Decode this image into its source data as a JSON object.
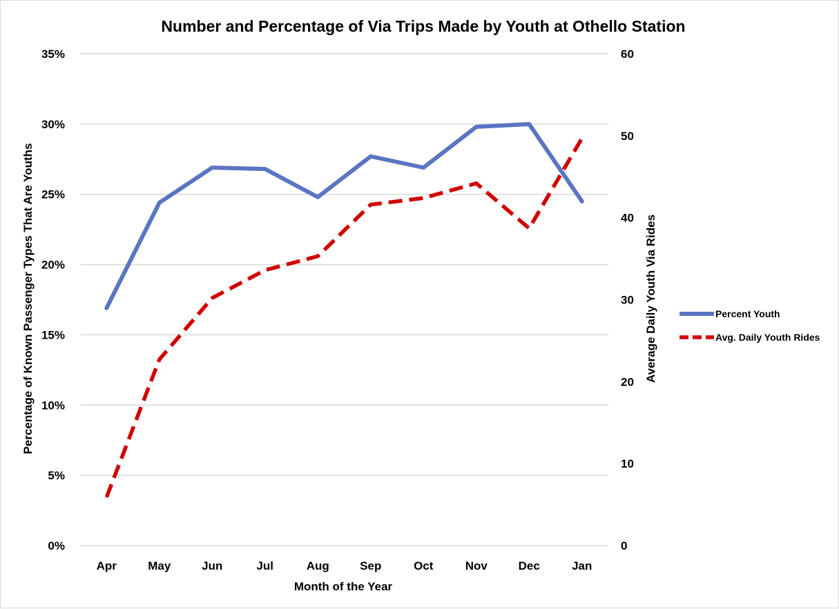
{
  "chart_data": {
    "type": "line",
    "title": "Number and Percentage of Via Trips Made by Youth at Othello Station",
    "xlabel": "Month of the Year",
    "ylabel": "Percentage of Known Passenger Types That Are Youths",
    "y2label": "Average Daily Youth Via Rides",
    "categories": [
      "Apr",
      "May",
      "Jun",
      "Jul",
      "Aug",
      "Sep",
      "Oct",
      "Nov",
      "Dec",
      "Jan"
    ],
    "left_axis": {
      "min": 0,
      "max": 35,
      "step": 5,
      "tick_labels": [
        "0%",
        "5%",
        "10%",
        "15%",
        "20%",
        "25%",
        "30%",
        "35%"
      ]
    },
    "right_axis": {
      "min": 0,
      "max": 60,
      "step": 10,
      "tick_labels": [
        "0",
        "10",
        "20",
        "30",
        "40",
        "50",
        "60"
      ]
    },
    "grid": true,
    "legend_position": "right",
    "series": [
      {
        "name": "Percent Youth",
        "axis": "left",
        "style": "solid",
        "color": "#5a75c2",
        "values": [
          16.9,
          24.4,
          26.9,
          26.8,
          24.8,
          27.7,
          26.9,
          29.8,
          30.0,
          24.5
        ]
      },
      {
        "name": "Avg. Daily Youth Rides",
        "axis": "right",
        "style": "dashed",
        "color": "#d00000",
        "values": [
          5.9,
          22.7,
          30.2,
          33.6,
          35.3,
          41.6,
          42.4,
          44.2,
          38.7,
          49.7
        ]
      }
    ]
  }
}
